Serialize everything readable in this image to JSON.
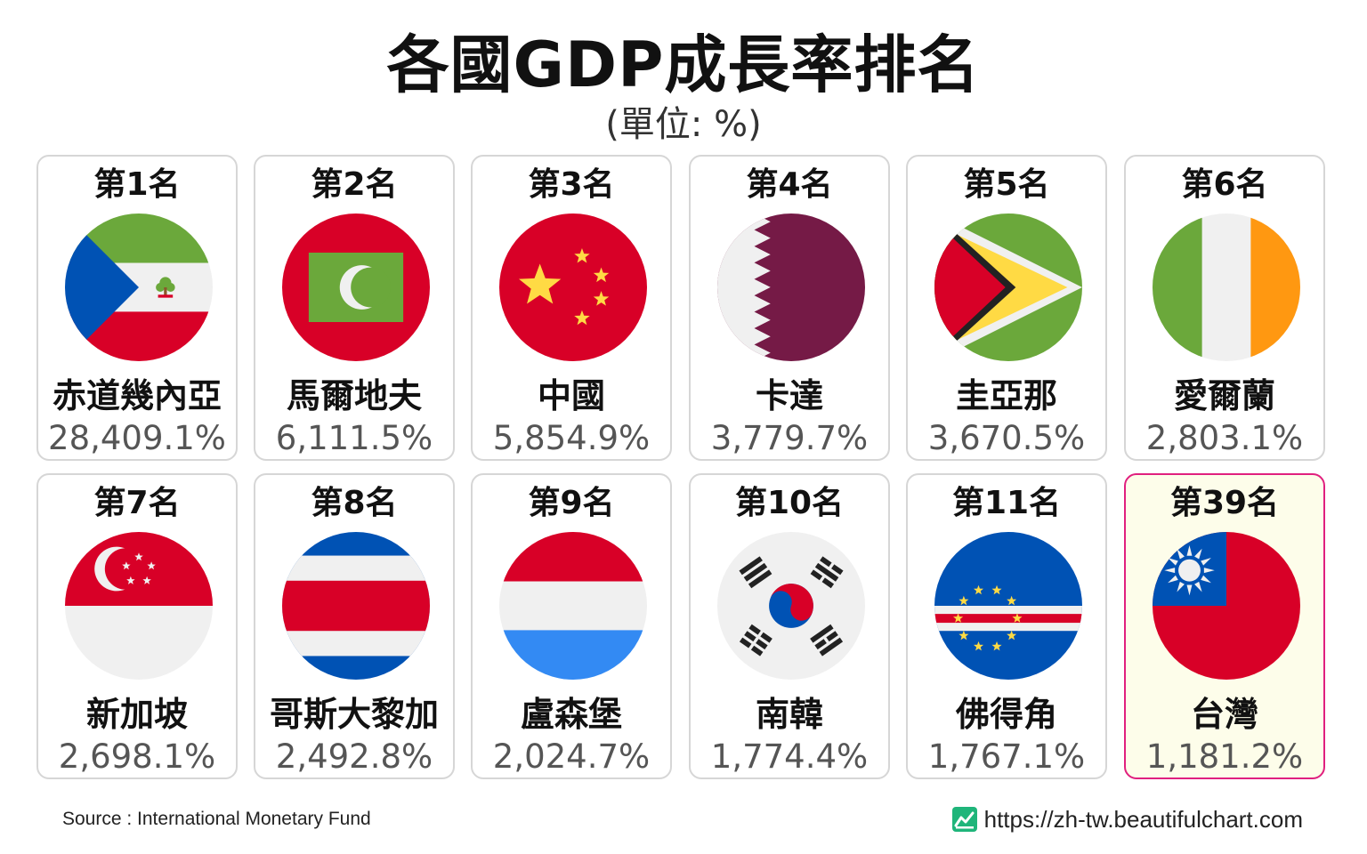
{
  "header": {
    "title": "各國GDP成長率排名",
    "subtitle": "(單位: %)"
  },
  "chart_data": {
    "type": "table",
    "title": "各國GDP成長率排名",
    "subtitle": "(單位: %)",
    "unit": "%",
    "entries": [
      {
        "rank_label": "第1名",
        "country": "赤道幾內亞",
        "value": 28409.1,
        "value_label": "28,409.1%",
        "flag": "equatorial-guinea"
      },
      {
        "rank_label": "第2名",
        "country": "馬爾地夫",
        "value": 6111.5,
        "value_label": "6,111.5%",
        "flag": "maldives"
      },
      {
        "rank_label": "第3名",
        "country": "中國",
        "value": 5854.9,
        "value_label": "5,854.9%",
        "flag": "china"
      },
      {
        "rank_label": "第4名",
        "country": "卡達",
        "value": 3779.7,
        "value_label": "3,779.7%",
        "flag": "qatar"
      },
      {
        "rank_label": "第5名",
        "country": "圭亞那",
        "value": 3670.5,
        "value_label": "3,670.5%",
        "flag": "guyana"
      },
      {
        "rank_label": "第6名",
        "country": "愛爾蘭",
        "value": 2803.1,
        "value_label": "2,803.1%",
        "flag": "ireland"
      },
      {
        "rank_label": "第7名",
        "country": "新加坡",
        "value": 2698.1,
        "value_label": "2,698.1%",
        "flag": "singapore"
      },
      {
        "rank_label": "第8名",
        "country": "哥斯大黎加",
        "value": 2492.8,
        "value_label": "2,492.8%",
        "flag": "costa-rica"
      },
      {
        "rank_label": "第9名",
        "country": "盧森堡",
        "value": 2024.7,
        "value_label": "2,024.7%",
        "flag": "luxembourg"
      },
      {
        "rank_label": "第10名",
        "country": "南韓",
        "value": 1774.4,
        "value_label": "1,774.4%",
        "flag": "south-korea"
      },
      {
        "rank_label": "第11名",
        "country": "佛得角",
        "value": 1767.1,
        "value_label": "1,767.1%",
        "flag": "cape-verde"
      },
      {
        "rank_label": "第39名",
        "country": "台灣",
        "value": 1181.2,
        "value_label": "1,181.2%",
        "flag": "taiwan",
        "highlight": true
      }
    ]
  },
  "colors": {
    "card_border": "#d6d6d6",
    "highlight_border": "#e0207f",
    "highlight_background": "#fdfdea",
    "value_text": "#555555"
  },
  "footer": {
    "source": "Source : International Monetary Fund",
    "url": "https://zh-tw.beautifulchart.com",
    "logo_icon": "chart-line-icon"
  }
}
